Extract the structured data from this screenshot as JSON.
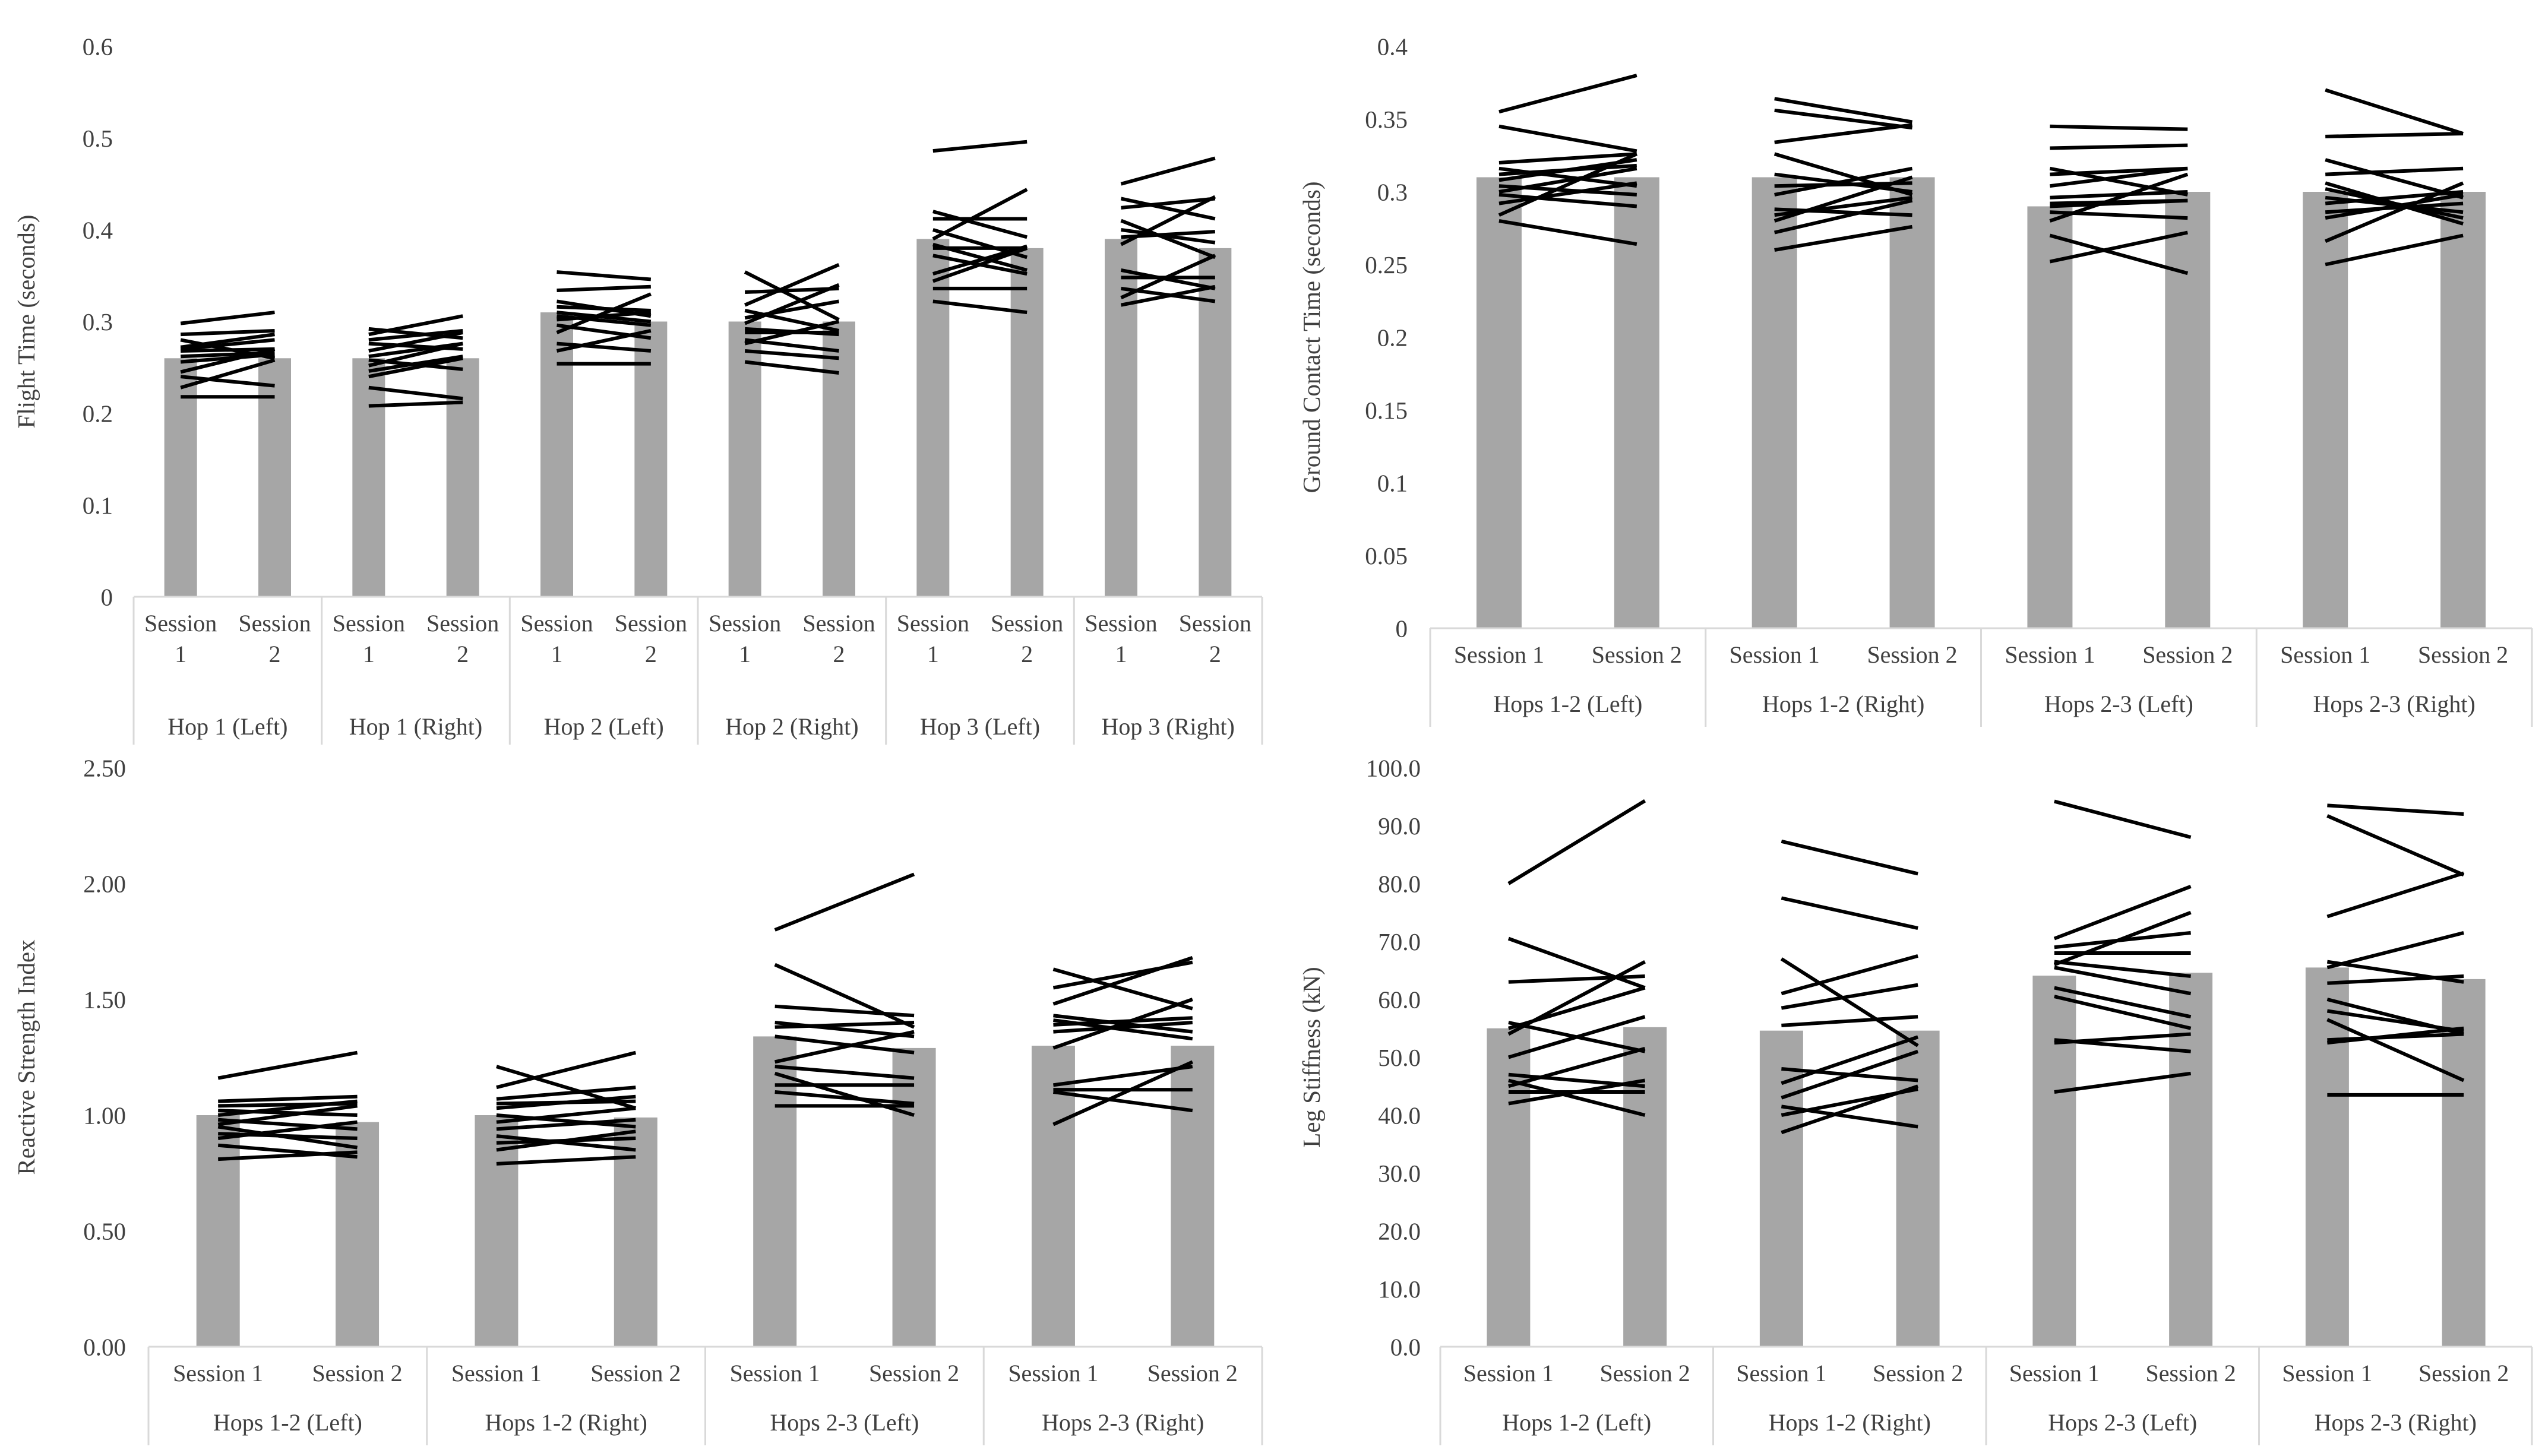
{
  "colors": {
    "bar": "#a6a6a6",
    "line": "#000000",
    "axis": "#d9d9d9",
    "text": "#404040"
  },
  "chart_data": [
    {
      "id": "flight-time",
      "type": "bar",
      "ylabel": "Flight Time (seconds)",
      "ylim": [
        0,
        0.6
      ],
      "ticks": [
        0,
        0.1,
        0.2,
        0.3,
        0.4,
        0.5,
        0.6
      ],
      "tick_labels": [
        "0",
        "0.1",
        "0.2",
        "0.3",
        "0.4",
        "0.5",
        "0.6"
      ],
      "session_labels": [
        [
          "Session",
          "1"
        ],
        [
          "Session",
          "2"
        ]
      ],
      "groups": [
        {
          "label": "Hop 1 (Left)",
          "values": [
            0.26,
            0.26
          ]
        },
        {
          "label": "Hop 1 (Right)",
          "values": [
            0.26,
            0.26
          ]
        },
        {
          "label": "Hop 2 (Left)",
          "values": [
            0.31,
            0.3
          ]
        },
        {
          "label": "Hop 2 (Right)",
          "values": [
            0.3,
            0.3
          ]
        },
        {
          "label": "Hop 3 (Left)",
          "values": [
            0.39,
            0.38
          ]
        },
        {
          "label": "Hop 3 (Right)",
          "values": [
            0.39,
            0.38
          ]
        }
      ],
      "individual_lines": [
        [
          [
            0.298,
            0.31
          ],
          [
            0.286,
            0.29
          ],
          [
            0.28,
            0.26
          ],
          [
            0.272,
            0.286
          ],
          [
            0.27,
            0.28
          ],
          [
            0.268,
            0.27
          ],
          [
            0.262,
            0.266
          ],
          [
            0.256,
            0.264
          ],
          [
            0.245,
            0.27
          ],
          [
            0.24,
            0.23
          ],
          [
            0.228,
            0.258
          ],
          [
            0.218,
            0.218
          ]
        ],
        [
          [
            0.292,
            0.282
          ],
          [
            0.286,
            0.306
          ],
          [
            0.28,
            0.29
          ],
          [
            0.276,
            0.27
          ],
          [
            0.268,
            0.288
          ],
          [
            0.262,
            0.276
          ],
          [
            0.258,
            0.248
          ],
          [
            0.252,
            0.276
          ],
          [
            0.246,
            0.262
          ],
          [
            0.24,
            0.26
          ],
          [
            0.228,
            0.216
          ],
          [
            0.208,
            0.212
          ]
        ],
        [
          [
            0.354,
            0.346
          ],
          [
            0.334,
            0.338
          ],
          [
            0.322,
            0.306
          ],
          [
            0.316,
            0.312
          ],
          [
            0.31,
            0.3
          ],
          [
            0.306,
            0.296
          ],
          [
            0.302,
            0.31
          ],
          [
            0.296,
            0.282
          ],
          [
            0.288,
            0.33
          ],
          [
            0.276,
            0.268
          ],
          [
            0.268,
            0.29
          ],
          [
            0.254,
            0.254
          ]
        ],
        [
          [
            0.354,
            0.302
          ],
          [
            0.332,
            0.336
          ],
          [
            0.318,
            0.362
          ],
          [
            0.312,
            0.29
          ],
          [
            0.304,
            0.322
          ],
          [
            0.298,
            0.34
          ],
          [
            0.292,
            0.286
          ],
          [
            0.288,
            0.288
          ],
          [
            0.28,
            0.268
          ],
          [
            0.276,
            0.3
          ],
          [
            0.268,
            0.26
          ],
          [
            0.256,
            0.244
          ]
        ],
        [
          [
            0.486,
            0.496
          ],
          [
            0.42,
            0.392
          ],
          [
            0.412,
            0.412
          ],
          [
            0.4,
            0.37
          ],
          [
            0.39,
            0.444
          ],
          [
            0.384,
            0.356
          ],
          [
            0.38,
            0.38
          ],
          [
            0.372,
            0.352
          ],
          [
            0.352,
            0.382
          ],
          [
            0.344,
            0.38
          ],
          [
            0.336,
            0.336
          ],
          [
            0.322,
            0.31
          ]
        ],
        [
          [
            0.45,
            0.478
          ],
          [
            0.434,
            0.412
          ],
          [
            0.424,
            0.434
          ],
          [
            0.41,
            0.37
          ],
          [
            0.4,
            0.386
          ],
          [
            0.392,
            0.398
          ],
          [
            0.384,
            0.436
          ],
          [
            0.356,
            0.336
          ],
          [
            0.348,
            0.348
          ],
          [
            0.336,
            0.322
          ],
          [
            0.326,
            0.372
          ],
          [
            0.318,
            0.338
          ]
        ]
      ]
    },
    {
      "id": "ground-contact-time",
      "type": "bar",
      "ylabel": "Ground Contact Time (seconds)",
      "ylim": [
        0,
        0.4
      ],
      "ticks": [
        0,
        0.05,
        0.1,
        0.15,
        0.2,
        0.25,
        0.3,
        0.35,
        0.4
      ],
      "tick_labels": [
        "0",
        "0.05",
        "0.1",
        "0.15",
        "0.2",
        "0.25",
        "0.3",
        "0.35",
        "0.4"
      ],
      "session_labels": [
        [
          "Session 1"
        ],
        [
          "Session 2"
        ]
      ],
      "groups": [
        {
          "label": "Hops 1-2 (Left)",
          "values": [
            0.31,
            0.31
          ]
        },
        {
          "label": "Hops 1-2 (Right)",
          "values": [
            0.31,
            0.31
          ]
        },
        {
          "label": "Hops 2-3 (Left)",
          "values": [
            0.29,
            0.3
          ]
        },
        {
          "label": "Hops 2-3 (Right)",
          "values": [
            0.3,
            0.3
          ]
        }
      ],
      "individual_lines": [
        [
          [
            0.355,
            0.38
          ],
          [
            0.345,
            0.328
          ],
          [
            0.32,
            0.326
          ],
          [
            0.316,
            0.304
          ],
          [
            0.312,
            0.318
          ],
          [
            0.308,
            0.322
          ],
          [
            0.304,
            0.298
          ],
          [
            0.3,
            0.316
          ],
          [
            0.298,
            0.29
          ],
          [
            0.292,
            0.306
          ],
          [
            0.284,
            0.326
          ],
          [
            0.28,
            0.264
          ]
        ],
        [
          [
            0.364,
            0.348
          ],
          [
            0.356,
            0.344
          ],
          [
            0.334,
            0.346
          ],
          [
            0.326,
            0.298
          ],
          [
            0.312,
            0.3
          ],
          [
            0.304,
            0.306
          ],
          [
            0.298,
            0.316
          ],
          [
            0.288,
            0.284
          ],
          [
            0.284,
            0.296
          ],
          [
            0.28,
            0.31
          ],
          [
            0.272,
            0.294
          ],
          [
            0.26,
            0.276
          ]
        ],
        [
          [
            0.345,
            0.343
          ],
          [
            0.33,
            0.332
          ],
          [
            0.316,
            0.298
          ],
          [
            0.312,
            0.316
          ],
          [
            0.304,
            0.316
          ],
          [
            0.296,
            0.3
          ],
          [
            0.292,
            0.294
          ],
          [
            0.29,
            0.294
          ],
          [
            0.286,
            0.282
          ],
          [
            0.28,
            0.312
          ],
          [
            0.27,
            0.244
          ],
          [
            0.252,
            0.272
          ]
        ],
        [
          [
            0.37,
            0.34
          ],
          [
            0.338,
            0.34
          ],
          [
            0.322,
            0.296
          ],
          [
            0.312,
            0.316
          ],
          [
            0.306,
            0.278
          ],
          [
            0.302,
            0.282
          ],
          [
            0.296,
            0.286
          ],
          [
            0.292,
            0.3
          ],
          [
            0.286,
            0.292
          ],
          [
            0.282,
            0.298
          ],
          [
            0.266,
            0.306
          ],
          [
            0.25,
            0.27
          ]
        ]
      ]
    },
    {
      "id": "reactive-strength-index",
      "type": "bar",
      "ylabel": "Reactive Strength Index",
      "ylim": [
        0,
        2.5
      ],
      "ticks": [
        0,
        0.5,
        1.0,
        1.5,
        2.0,
        2.5
      ],
      "tick_labels": [
        "0.00",
        "0.50",
        "1.00",
        "1.50",
        "2.00",
        "2.50"
      ],
      "session_labels": [
        [
          "Session 1"
        ],
        [
          "Session 2"
        ]
      ],
      "groups": [
        {
          "label": "Hops 1-2 (Left)",
          "values": [
            1.0,
            0.97
          ]
        },
        {
          "label": "Hops 1-2 (Right)",
          "values": [
            1.0,
            0.99
          ]
        },
        {
          "label": "Hops 2-3 (Left)",
          "values": [
            1.34,
            1.29
          ]
        },
        {
          "label": "Hops 2-3 (Right)",
          "values": [
            1.3,
            1.3
          ]
        }
      ],
      "individual_lines": [
        [
          [
            1.16,
            1.27
          ],
          [
            1.06,
            1.08
          ],
          [
            1.04,
            1.05
          ],
          [
            1.02,
            1.0
          ],
          [
            1.0,
            1.06
          ],
          [
            0.98,
            0.94
          ],
          [
            0.96,
            1.04
          ],
          [
            0.95,
            0.86
          ],
          [
            0.92,
            0.9
          ],
          [
            0.9,
            0.97
          ],
          [
            0.87,
            0.82
          ],
          [
            0.81,
            0.84
          ]
        ],
        [
          [
            1.21,
            1.03
          ],
          [
            1.12,
            1.27
          ],
          [
            1.07,
            1.12
          ],
          [
            1.05,
            1.06
          ],
          [
            1.03,
            1.08
          ],
          [
            1.0,
            0.95
          ],
          [
            0.97,
            1.03
          ],
          [
            0.94,
            0.98
          ],
          [
            0.91,
            0.85
          ],
          [
            0.88,
            0.9
          ],
          [
            0.85,
            0.93
          ],
          [
            0.79,
            0.82
          ]
        ],
        [
          [
            1.8,
            2.04
          ],
          [
            1.65,
            1.38
          ],
          [
            1.47,
            1.43
          ],
          [
            1.4,
            1.34
          ],
          [
            1.38,
            1.4
          ],
          [
            1.34,
            1.27
          ],
          [
            1.23,
            1.36
          ],
          [
            1.21,
            1.16
          ],
          [
            1.18,
            1.0
          ],
          [
            1.13,
            1.13
          ],
          [
            1.1,
            1.05
          ],
          [
            1.04,
            1.04
          ]
        ],
        [
          [
            1.63,
            1.46
          ],
          [
            1.55,
            1.66
          ],
          [
            1.48,
            1.68
          ],
          [
            1.43,
            1.36
          ],
          [
            1.41,
            1.33
          ],
          [
            1.39,
            1.42
          ],
          [
            1.36,
            1.4
          ],
          [
            1.29,
            1.5
          ],
          [
            1.13,
            1.21
          ],
          [
            1.11,
            1.11
          ],
          [
            1.1,
            1.02
          ],
          [
            0.96,
            1.23
          ]
        ]
      ]
    },
    {
      "id": "leg-stiffness",
      "type": "bar",
      "ylabel": "Leg Stiffness (kN)",
      "ylim": [
        0,
        100
      ],
      "ticks": [
        0,
        10,
        20,
        30,
        40,
        50,
        60,
        70,
        80,
        90,
        100
      ],
      "tick_labels": [
        "0.0",
        "10.0",
        "20.0",
        "30.0",
        "40.0",
        "50.0",
        "60.0",
        "70.0",
        "80.0",
        "90.0",
        "100.0"
      ],
      "session_labels": [
        [
          "Session 1"
        ],
        [
          "Session 2"
        ]
      ],
      "groups": [
        {
          "label": "Hops 1-2 (Left)",
          "values": [
            55.0,
            55.2
          ]
        },
        {
          "label": "Hops 1-2 (Right)",
          "values": [
            54.6,
            54.6
          ]
        },
        {
          "label": "Hops 2-3 (Left)",
          "values": [
            64.1,
            64.6
          ]
        },
        {
          "label": "Hops 2-3 (Right)",
          "values": [
            65.5,
            63.5
          ]
        }
      ],
      "individual_lines": [
        [
          [
            80.0,
            94.3
          ],
          [
            70.5,
            62.0
          ],
          [
            63.0,
            64.0
          ],
          [
            56.0,
            51.0
          ],
          [
            54.0,
            66.5
          ],
          [
            50.0,
            57.0
          ],
          [
            47.0,
            45.0
          ],
          [
            46.0,
            40.0
          ],
          [
            45.0,
            51.5
          ],
          [
            44.0,
            44.0
          ],
          [
            42.0,
            46.0
          ],
          [
            55.0,
            62.0
          ]
        ],
        [
          [
            87.3,
            81.7
          ],
          [
            77.5,
            72.3
          ],
          [
            67.0,
            52.0
          ],
          [
            61.0,
            67.5
          ],
          [
            58.5,
            62.5
          ],
          [
            55.5,
            57.0
          ],
          [
            48.0,
            46.0
          ],
          [
            45.5,
            53.5
          ],
          [
            43.0,
            51.0
          ],
          [
            41.5,
            38.0
          ],
          [
            40.0,
            44.5
          ],
          [
            37.0,
            45.0
          ]
        ],
        [
          [
            94.2,
            88.0
          ],
          [
            70.5,
            79.5
          ],
          [
            69.0,
            71.5
          ],
          [
            68.0,
            68.0
          ],
          [
            66.0,
            75.0
          ],
          [
            65.5,
            61.0
          ],
          [
            62.0,
            57.0
          ],
          [
            60.5,
            55.0
          ],
          [
            53.0,
            51.0
          ],
          [
            52.5,
            54.0
          ],
          [
            44.0,
            47.2
          ],
          [
            66.5,
            64.0
          ]
        ],
        [
          [
            93.5,
            92.0
          ],
          [
            91.7,
            81.5
          ],
          [
            74.3,
            81.8
          ],
          [
            66.5,
            63.0
          ],
          [
            65.5,
            71.5
          ],
          [
            62.8,
            64.0
          ],
          [
            60.0,
            54.0
          ],
          [
            58.0,
            54.5
          ],
          [
            56.5,
            46.0
          ],
          [
            53.0,
            54.0
          ],
          [
            52.5,
            55.0
          ],
          [
            43.5,
            43.5
          ]
        ]
      ]
    }
  ]
}
